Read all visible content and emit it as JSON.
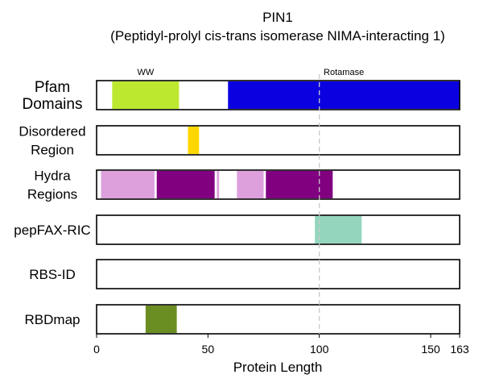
{
  "chart_data": {
    "type": "bar",
    "title": "PIN1",
    "subtitle": "(Peptidyl-prolyl cis-trans isomerase NIMA-interacting 1)",
    "xlabel": "Protein Length",
    "xlim": [
      0,
      163
    ],
    "xticks": [
      "0",
      "50",
      "100",
      "150",
      "163"
    ],
    "xtick_values": [
      0,
      50,
      100,
      150,
      163
    ],
    "reference_line_x": 100,
    "annotations": [
      {
        "text": "WW",
        "x": 22
      },
      {
        "text": "Rotamase",
        "x": 111
      }
    ],
    "rows": [
      {
        "label_lines": [
          "Pfam",
          "Domains"
        ],
        "segments": [
          {
            "start": 7,
            "end": 37,
            "color": "#bde830"
          },
          {
            "start": 59,
            "end": 163,
            "color": "#0a00e0"
          }
        ]
      },
      {
        "label_lines": [
          "Disordered",
          "Region"
        ],
        "segments": [
          {
            "start": 41,
            "end": 46,
            "color": "#ffd700"
          }
        ]
      },
      {
        "label_lines": [
          "Hydra",
          "Regions"
        ],
        "segments": [
          {
            "start": 2,
            "end": 26,
            "color": "#dda0dd"
          },
          {
            "start": 27,
            "end": 53,
            "color": "#800080"
          },
          {
            "start": 54,
            "end": 55,
            "color": "#dda0dd"
          },
          {
            "start": 63,
            "end": 75,
            "color": "#dda0dd"
          },
          {
            "start": 76,
            "end": 106,
            "color": "#800080"
          }
        ]
      },
      {
        "label_lines": [
          "pepFAX-RIC"
        ],
        "segments": [
          {
            "start": 98,
            "end": 119,
            "color": "#93d6bd"
          }
        ]
      },
      {
        "label_lines": [
          "RBS-ID"
        ],
        "segments": []
      },
      {
        "label_lines": [
          "RBDmap"
        ],
        "segments": [
          {
            "start": 22,
            "end": 36,
            "color": "#6b8e23"
          }
        ]
      }
    ]
  }
}
